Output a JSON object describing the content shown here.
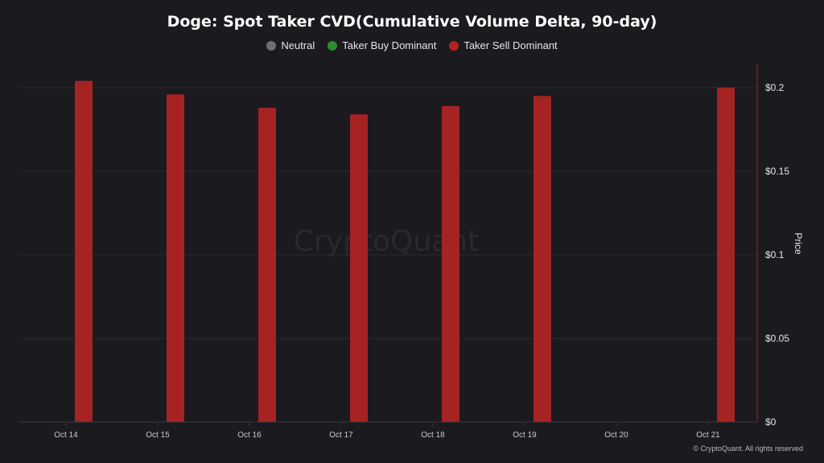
{
  "chart_data": {
    "type": "bar",
    "title": "Doge: Spot Taker CVD(Cumulative Volume Delta, 90-day)",
    "legend": [
      {
        "name": "Neutral",
        "color": "#6e6d78"
      },
      {
        "name": "Taker Buy Dominant",
        "color": "#2e8b2e"
      },
      {
        "name": "Taker Sell Dominant",
        "color": "#b22222"
      }
    ],
    "legend_position": "top-center",
    "categories": [
      "Oct 14",
      "Oct 15",
      "Oct 16",
      "Oct 17",
      "Oct 18",
      "Oct 19",
      "Oct 20",
      "Oct 21"
    ],
    "values": [
      0.204,
      0.196,
      0.188,
      0.184,
      0.189,
      0.195,
      null,
      0.2
    ],
    "bar_color": "#a52323",
    "ylabel": "Price",
    "yaxis_side": "right",
    "ylim": [
      0,
      0.215
    ],
    "yticks": [
      0,
      0.05,
      0.1,
      0.15,
      0.2
    ],
    "ytick_labels": [
      "$0",
      "$0.05",
      "$0.1",
      "$0.15",
      "$0.2"
    ],
    "grid": true
  },
  "watermark": "CryptoQuant",
  "copyright": "© CryptoQuant. All rights reserved"
}
